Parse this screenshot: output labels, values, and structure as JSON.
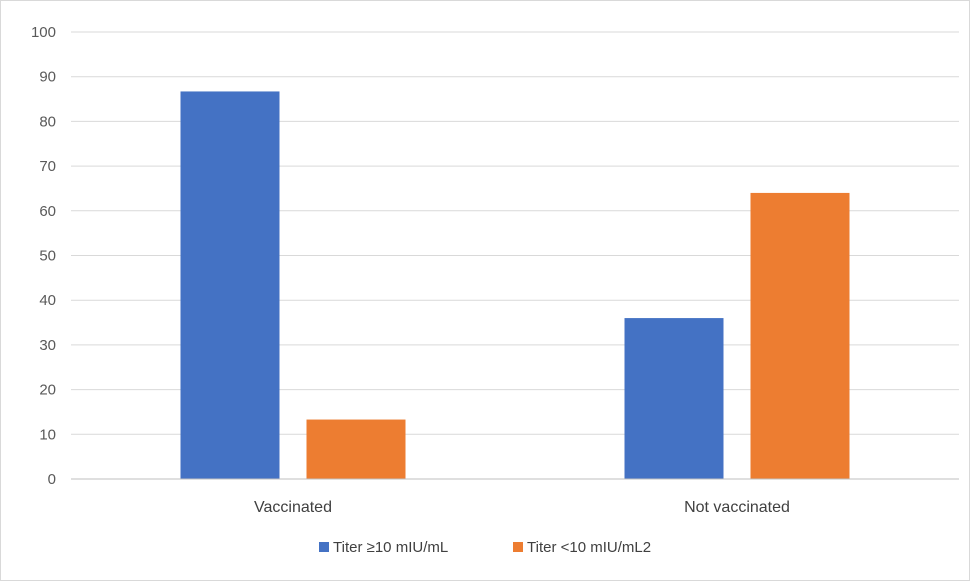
{
  "chart_data": {
    "type": "bar",
    "title": "",
    "xlabel": "",
    "ylabel": "",
    "categories": [
      "Vaccinated",
      "Not vaccinated"
    ],
    "series": [
      {
        "name": "Titer ≥10 mIU/mL",
        "values": [
          86.7,
          36.0
        ],
        "color": "#4472C4"
      },
      {
        "name": "Titer <10 mIU/mL2",
        "values": [
          13.3,
          64.0
        ],
        "color": "#ED7D31"
      }
    ],
    "ylim": [
      0,
      100
    ],
    "yticks": [
      "0",
      "10",
      "20",
      "30",
      "40",
      "50",
      "60",
      "70",
      "80",
      "90",
      "100"
    ],
    "grid": true,
    "legend_position": "bottom"
  }
}
